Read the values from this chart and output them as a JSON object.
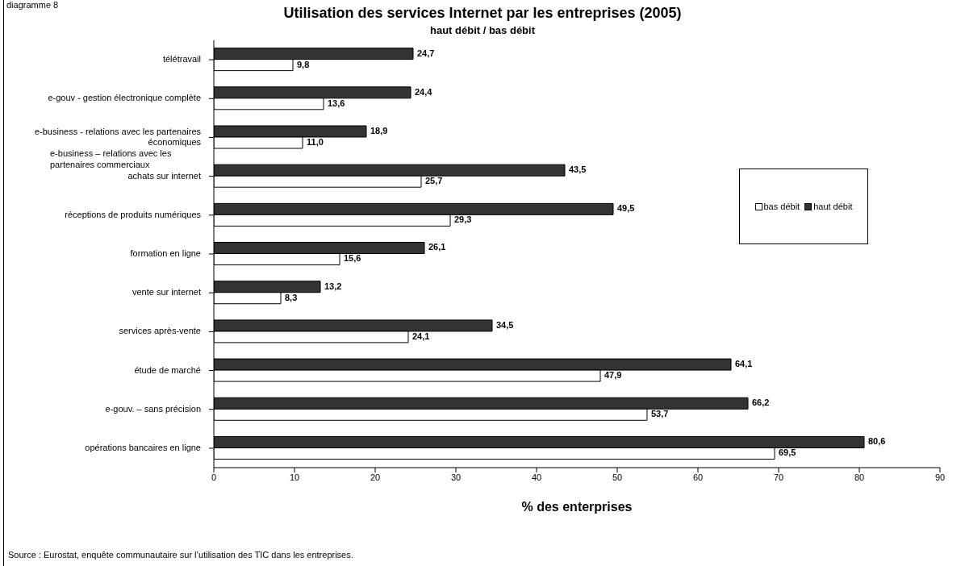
{
  "chart_data": {
    "type": "bar",
    "orientation": "horizontal",
    "title": "Utilisation des services Internet par les entreprises (2005)",
    "subtitle": "haut débit / bas débit",
    "xlabel": "% des enterprises",
    "categories": [
      "télétravail",
      "e-gouv - gestion électronique complète",
      "e-business - relations avec les partenaires économiques",
      "achats sur internet",
      "réceptions de produits numériques",
      "formation en ligne",
      "vente sur internet",
      "services après-vente",
      "étude de marché",
      "e-gouv. – sans précision",
      "opérations bancaires en ligne"
    ],
    "series": [
      {
        "name": "haut débit",
        "color": "#333333",
        "values": [
          24.7,
          24.4,
          18.9,
          43.5,
          49.5,
          26.1,
          13.2,
          34.5,
          64.1,
          66.2,
          80.6
        ],
        "value_labels": [
          "24,7",
          "24,4",
          "18,9",
          "43,5",
          "49,5",
          "26,1",
          "13,2",
          "34,5",
          "64,1",
          "66,2",
          "80,6"
        ]
      },
      {
        "name": "bas débit",
        "color": "#ffffff",
        "values": [
          9.8,
          13.6,
          11.0,
          25.7,
          29.3,
          15.6,
          8.3,
          24.1,
          47.9,
          53.7,
          69.5
        ],
        "value_labels": [
          "9,8",
          "13,6",
          "11,0",
          "25,7",
          "29,3",
          "15,6",
          "8,3",
          "24,1",
          "47,9",
          "53,7",
          "69,5"
        ]
      }
    ],
    "xlim": [
      0,
      90
    ],
    "xticks": [
      0,
      10,
      20,
      30,
      40,
      50,
      60,
      70,
      80,
      90
    ],
    "grid": false,
    "legend": "right",
    "annotations": [
      "diagramme 8",
      "e-business – relations avec les partenaires commerciaux",
      "Source : Eurostat, enquête communautaire sur l’utilisation des TIC dans les entreprises."
    ]
  }
}
